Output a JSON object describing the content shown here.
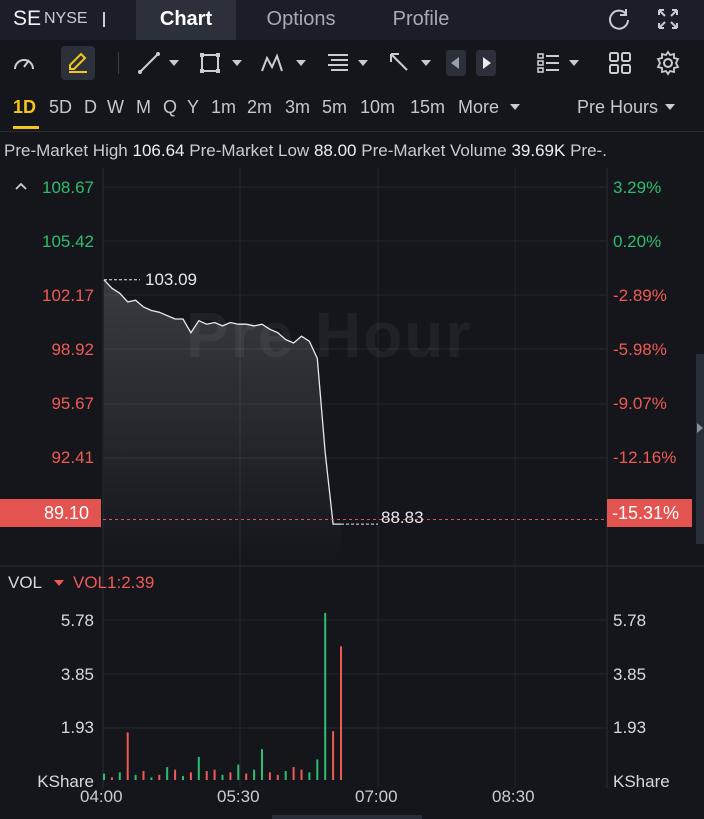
{
  "header": {
    "ticker": "SE",
    "exchange": "NYSE",
    "tabs": [
      {
        "label": "Chart",
        "active": true
      },
      {
        "label": "Options",
        "active": false
      },
      {
        "label": "Profile",
        "active": false
      }
    ],
    "icons": [
      "refresh-icon",
      "fullscreen-icon"
    ]
  },
  "toolbar": {
    "icons": [
      "gauge-icon",
      "draw-pencil-icon",
      "trendline-icon",
      "rectangle-icon",
      "pattern-icon",
      "fibonacci-icon",
      "arrow-tool-icon",
      "prev-arrow-icon",
      "next-arrow-icon",
      "indicators-list-icon",
      "layout-grid-icon",
      "settings-gear-icon"
    ]
  },
  "periods": {
    "items": [
      "1D",
      "5D",
      "D",
      "W",
      "M",
      "Q",
      "Y",
      "1m",
      "2m",
      "3m",
      "5m",
      "10m",
      "15m"
    ],
    "active": "1D",
    "more_label": "More",
    "session_label": "Pre Hours"
  },
  "stats": {
    "high_label": "Pre-Market High",
    "high_value": "106.64",
    "low_label": "Pre-Market Low",
    "low_value": "88.00",
    "volume_label": "Pre-Market Volume",
    "volume_value": "39.69K",
    "trailing": "Pre-."
  },
  "price_axis": {
    "left": [
      {
        "label": "108.67",
        "tone": "green"
      },
      {
        "label": "105.42",
        "tone": "green"
      },
      {
        "label": "102.17",
        "tone": "red"
      },
      {
        "label": "98.92",
        "tone": "red"
      },
      {
        "label": "95.67",
        "tone": "red"
      },
      {
        "label": "92.41",
        "tone": "red"
      }
    ],
    "right": [
      {
        "label": "3.29%",
        "tone": "green"
      },
      {
        "label": "0.20%",
        "tone": "green"
      },
      {
        "label": "-2.89%",
        "tone": "red"
      },
      {
        "label": "-5.98%",
        "tone": "red"
      },
      {
        "label": "-9.07%",
        "tone": "red"
      },
      {
        "label": "-12.16%",
        "tone": "red"
      }
    ],
    "current_price": "89.10",
    "current_change": "-15.31%"
  },
  "annotations": {
    "start_price": "103.09",
    "last_price": "88.83"
  },
  "watermark": "Pre Hour",
  "volume_panel": {
    "label": "VOL",
    "indicator": "VOL1:2.39",
    "axis_left": [
      "5.78",
      "3.85",
      "1.93",
      "KShare"
    ],
    "axis_right": [
      "5.78",
      "3.85",
      "1.93",
      "KShare"
    ]
  },
  "time_axis": [
    "04:00",
    "05:30",
    "07:00",
    "08:30"
  ],
  "colors": {
    "up": "#2ebd6e",
    "down": "#f05a55",
    "accent": "#f5c518",
    "background": "#14161c"
  },
  "chart_data": {
    "type": "line",
    "x": [
      "04:00",
      "04:05",
      "04:10",
      "04:15",
      "04:20",
      "04:25",
      "04:30",
      "04:35",
      "04:40",
      "04:45",
      "04:50",
      "04:55",
      "05:00",
      "05:05",
      "05:10",
      "05:15",
      "05:20",
      "05:25",
      "05:30",
      "05:35",
      "05:40",
      "05:45",
      "05:50",
      "05:55",
      "06:00",
      "06:02",
      "06:05",
      "06:08",
      "06:10",
      "06:12",
      "06:15"
    ],
    "values": [
      103.09,
      102.6,
      102.3,
      101.8,
      101.9,
      101.5,
      101.3,
      101.2,
      101.0,
      100.8,
      100.8,
      100.0,
      100.7,
      100.5,
      100.6,
      100.4,
      100.6,
      100.5,
      100.5,
      100.4,
      100.5,
      100.2,
      100.0,
      99.6,
      99.4,
      99.8,
      99.5,
      98.5,
      93.0,
      88.83,
      88.83
    ],
    "volume": [
      0.25,
      0.1,
      0.3,
      1.85,
      0.2,
      0.35,
      0.1,
      0.2,
      0.5,
      0.4,
      0.15,
      0.3,
      0.9,
      0.35,
      0.4,
      0.2,
      0.3,
      0.6,
      0.25,
      0.4,
      1.2,
      0.3,
      0.2,
      0.35,
      0.5,
      0.4,
      0.3,
      0.8,
      6.5,
      1.9,
      5.2
    ],
    "volume_up": [
      true,
      false,
      true,
      false,
      true,
      false,
      true,
      false,
      true,
      false,
      true,
      false,
      true,
      false,
      false,
      true,
      false,
      true,
      false,
      true,
      true,
      false,
      false,
      true,
      false,
      false,
      true,
      true,
      true,
      false,
      false
    ],
    "ylim": [
      86.5,
      109.5
    ],
    "vol_ylim": [
      0,
      7.0
    ]
  }
}
